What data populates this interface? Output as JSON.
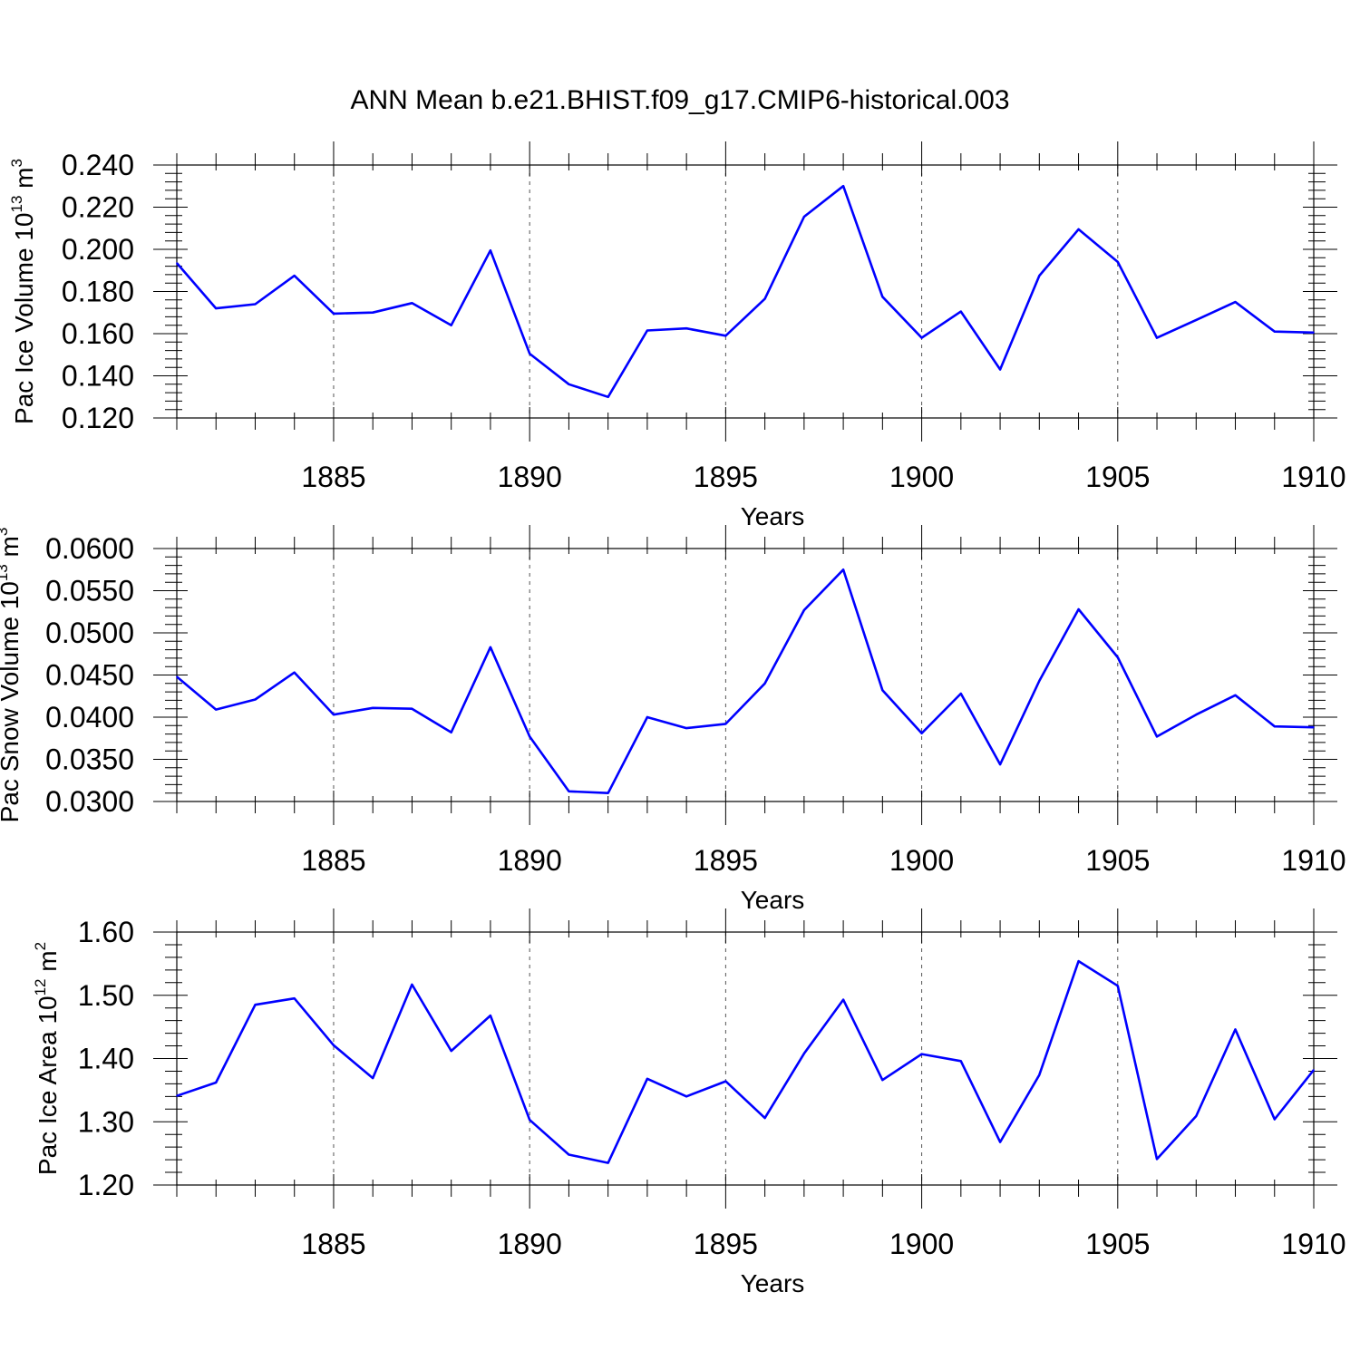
{
  "title": "ANN Mean b.e21.BHIST.f09_g17.CMIP6-historical.003",
  "colors": {
    "series": "#0000ff",
    "axes": "#000000",
    "grid": "#555555"
  },
  "chart_data": [
    {
      "type": "line",
      "title": "ANN Mean b.e21.BHIST.f09_g17.CMIP6-historical.003",
      "xlabel": "Years",
      "ylabel": {
        "text": "Pac Ice Volume 10",
        "exponent": "13",
        "unit": "m",
        "unit_exponent": "3"
      },
      "xlim": [
        1881,
        1910
      ],
      "ylim": [
        0.12,
        0.24
      ],
      "x_ticks": [
        1885,
        1890,
        1895,
        1900,
        1905,
        1910
      ],
      "x_tick_labels": [
        "1885",
        "1890",
        "1895",
        "1900",
        "1905",
        "1910"
      ],
      "y_ticks": [
        0.12,
        0.14,
        0.16,
        0.18,
        0.2,
        0.22,
        0.24
      ],
      "y_tick_labels": [
        "0.120",
        "0.140",
        "0.160",
        "0.180",
        "0.200",
        "0.220",
        "0.240"
      ],
      "grid": "vertical dashed at major x ticks",
      "x": [
        1881,
        1882,
        1883,
        1884,
        1885,
        1886,
        1887,
        1888,
        1889,
        1890,
        1891,
        1892,
        1893,
        1894,
        1895,
        1896,
        1897,
        1898,
        1899,
        1900,
        1901,
        1902,
        1903,
        1904,
        1905,
        1906,
        1907,
        1908,
        1909,
        1910
      ],
      "series": [
        {
          "name": "Pac Ice Volume",
          "values": [
            0.1935,
            0.172,
            0.174,
            0.1875,
            0.1695,
            0.17,
            0.1745,
            0.164,
            0.1995,
            0.1505,
            0.136,
            0.13,
            0.1615,
            0.1625,
            0.159,
            0.1765,
            0.2155,
            0.23,
            0.1775,
            0.158,
            0.1705,
            0.143,
            0.1875,
            0.2095,
            0.194,
            0.158,
            0.1665,
            0.175,
            0.161,
            0.1605
          ]
        }
      ]
    },
    {
      "type": "line",
      "xlabel": "Years",
      "ylabel": {
        "text": "Pac Snow Volume 10",
        "exponent": "13",
        "unit": "m",
        "unit_exponent": "3"
      },
      "xlim": [
        1881,
        1910
      ],
      "ylim": [
        0.03,
        0.06
      ],
      "x_ticks": [
        1885,
        1890,
        1895,
        1900,
        1905,
        1910
      ],
      "x_tick_labels": [
        "1885",
        "1890",
        "1895",
        "1900",
        "1905",
        "1910"
      ],
      "y_ticks": [
        0.03,
        0.035,
        0.04,
        0.045,
        0.05,
        0.055,
        0.06
      ],
      "y_tick_labels": [
        "0.0300",
        "0.0350",
        "0.0400",
        "0.0450",
        "0.0500",
        "0.0550",
        "0.0600"
      ],
      "grid": "vertical dashed at major x ticks",
      "x": [
        1881,
        1882,
        1883,
        1884,
        1885,
        1886,
        1887,
        1888,
        1889,
        1890,
        1891,
        1892,
        1893,
        1894,
        1895,
        1896,
        1897,
        1898,
        1899,
        1900,
        1901,
        1902,
        1903,
        1904,
        1905,
        1906,
        1907,
        1908,
        1909,
        1910
      ],
      "series": [
        {
          "name": "Pac Snow Volume",
          "values": [
            0.0448,
            0.0409,
            0.0421,
            0.0453,
            0.0403,
            0.0411,
            0.041,
            0.0382,
            0.0483,
            0.0377,
            0.0312,
            0.031,
            0.04,
            0.0387,
            0.0392,
            0.044,
            0.0527,
            0.0575,
            0.0432,
            0.0381,
            0.0428,
            0.0344,
            0.0443,
            0.0528,
            0.0471,
            0.0377,
            0.0403,
            0.0426,
            0.0389,
            0.0388
          ]
        }
      ]
    },
    {
      "type": "line",
      "xlabel": "Years",
      "ylabel": {
        "text": "Pac Ice Area 10",
        "exponent": "12",
        "unit": "m",
        "unit_exponent": "2"
      },
      "xlim": [
        1881,
        1910
      ],
      "ylim": [
        1.2,
        1.6
      ],
      "x_ticks": [
        1885,
        1890,
        1895,
        1900,
        1905,
        1910
      ],
      "x_tick_labels": [
        "1885",
        "1890",
        "1895",
        "1900",
        "1905",
        "1910"
      ],
      "y_ticks": [
        1.2,
        1.3,
        1.4,
        1.5,
        1.6
      ],
      "y_tick_labels": [
        "1.20",
        "1.30",
        "1.40",
        "1.50",
        "1.60"
      ],
      "grid": "vertical dashed at major x ticks",
      "x": [
        1881,
        1882,
        1883,
        1884,
        1885,
        1886,
        1887,
        1888,
        1889,
        1890,
        1891,
        1892,
        1893,
        1894,
        1895,
        1896,
        1897,
        1898,
        1899,
        1900,
        1901,
        1902,
        1903,
        1904,
        1905,
        1906,
        1907,
        1908,
        1909,
        1910
      ],
      "series": [
        {
          "name": "Pac Ice Area",
          "values": [
            1.341,
            1.362,
            1.485,
            1.495,
            1.421,
            1.369,
            1.517,
            1.412,
            1.468,
            1.303,
            1.248,
            1.235,
            1.368,
            1.34,
            1.364,
            1.306,
            1.408,
            1.493,
            1.366,
            1.407,
            1.396,
            1.268,
            1.374,
            1.554,
            1.515,
            1.241,
            1.309,
            1.446,
            1.304,
            1.382
          ]
        }
      ]
    }
  ]
}
